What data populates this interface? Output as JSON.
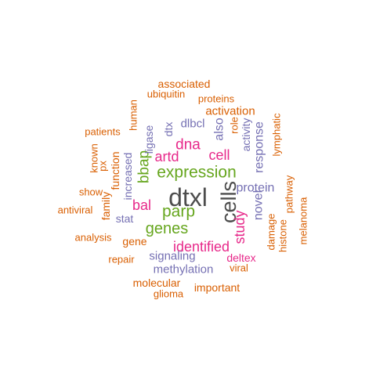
{
  "palette": {
    "dark_gray": "#4d4d4d",
    "purple": "#7570b3",
    "green": "#66a61e",
    "magenta": "#e7298a",
    "orange": "#d95f02"
  },
  "words": [
    {
      "text": "dtxl",
      "color": "dark_gray"
    },
    {
      "text": "cells",
      "color": "dark_gray"
    },
    {
      "text": "expression",
      "color": "green"
    },
    {
      "text": "parp",
      "color": "green"
    },
    {
      "text": "genes",
      "color": "green"
    },
    {
      "text": "bbap",
      "color": "green"
    },
    {
      "text": "dna",
      "color": "magenta"
    },
    {
      "text": "artd",
      "color": "magenta"
    },
    {
      "text": "cell",
      "color": "magenta"
    },
    {
      "text": "bal",
      "color": "magenta"
    },
    {
      "text": "identified",
      "color": "magenta"
    },
    {
      "text": "study",
      "color": "magenta"
    },
    {
      "text": "protein",
      "color": "purple"
    },
    {
      "text": "novel",
      "color": "purple"
    },
    {
      "text": "response",
      "color": "purple"
    },
    {
      "text": "also",
      "color": "purple"
    },
    {
      "text": "dlbcl",
      "color": "purple"
    },
    {
      "text": "dtx",
      "color": "purple"
    },
    {
      "text": "ligase",
      "color": "purple"
    },
    {
      "text": "increased",
      "color": "purple"
    },
    {
      "text": "stat",
      "color": "purple"
    },
    {
      "text": "signaling",
      "color": "purple"
    },
    {
      "text": "methylation",
      "color": "purple"
    },
    {
      "text": "activity",
      "color": "purple"
    },
    {
      "text": "deltex",
      "color": "magenta"
    },
    {
      "text": "associated",
      "color": "orange"
    },
    {
      "text": "ubiquitin",
      "color": "orange"
    },
    {
      "text": "proteins",
      "color": "orange"
    },
    {
      "text": "activation",
      "color": "orange"
    },
    {
      "text": "role",
      "color": "orange"
    },
    {
      "text": "lymphatic",
      "color": "orange"
    },
    {
      "text": "human",
      "color": "orange"
    },
    {
      "text": "patients",
      "color": "orange"
    },
    {
      "text": "known",
      "color": "orange"
    },
    {
      "text": "px",
      "color": "orange"
    },
    {
      "text": "function",
      "color": "orange"
    },
    {
      "text": "show",
      "color": "orange"
    },
    {
      "text": "family",
      "color": "orange"
    },
    {
      "text": "antiviral",
      "color": "orange"
    },
    {
      "text": "analysis",
      "color": "orange"
    },
    {
      "text": "gene",
      "color": "orange"
    },
    {
      "text": "repair",
      "color": "orange"
    },
    {
      "text": "molecular",
      "color": "orange"
    },
    {
      "text": "glioma",
      "color": "orange"
    },
    {
      "text": "important",
      "color": "orange"
    },
    {
      "text": "viral",
      "color": "orange"
    },
    {
      "text": "histone",
      "color": "orange"
    },
    {
      "text": "damage",
      "color": "orange"
    },
    {
      "text": "pathway",
      "color": "orange"
    },
    {
      "text": "melanoma",
      "color": "orange"
    }
  ]
}
